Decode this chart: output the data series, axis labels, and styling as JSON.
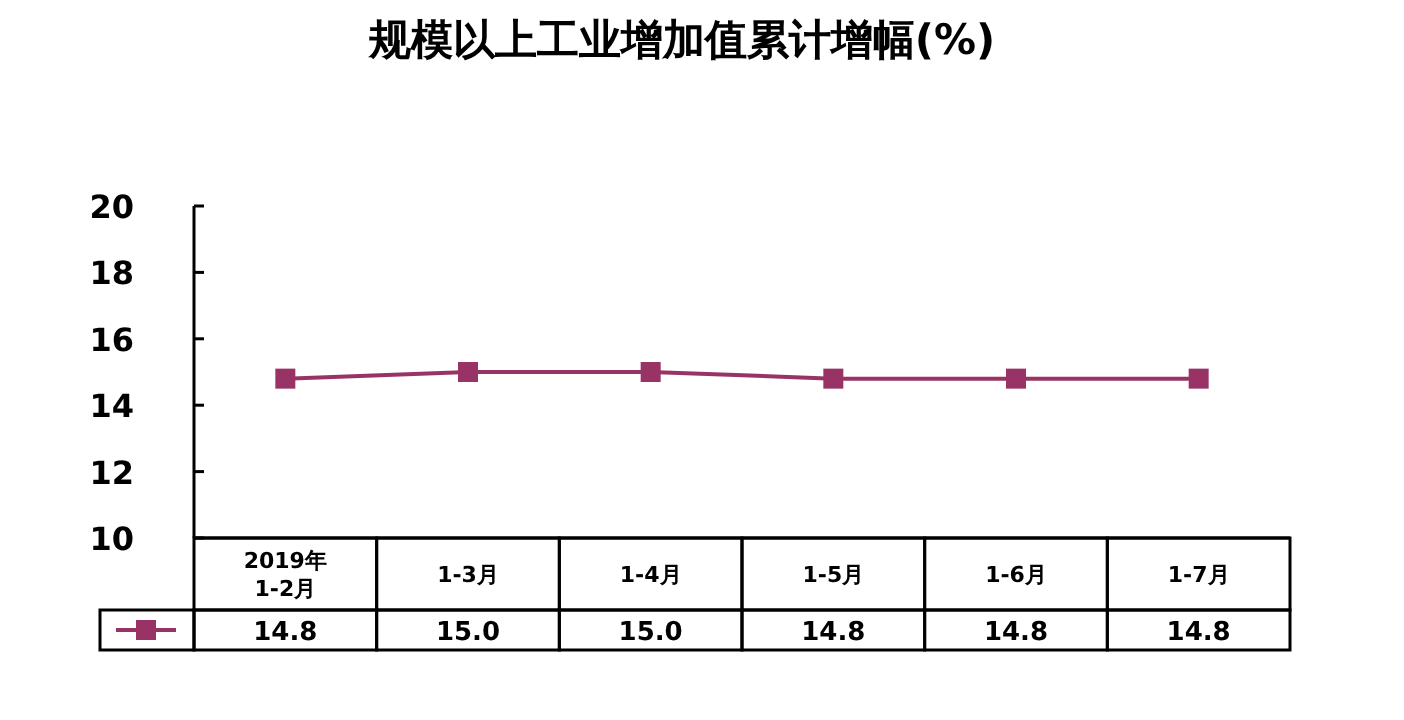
{
  "chart_data": {
    "type": "line",
    "title": "规模以上工业增加值累计增幅(%)",
    "categories": [
      "2019年 1-2月",
      "1-3月",
      "1-4月",
      "1-5月",
      "1-6月",
      "1-7月"
    ],
    "series": [
      {
        "color": "#993366",
        "values": [
          14.8,
          15.0,
          15.0,
          14.8,
          14.8,
          14.8
        ],
        "value_labels": [
          "14.8",
          "15.0",
          "15.0",
          "14.8",
          "14.8",
          "14.8"
        ]
      }
    ],
    "ylim": [
      10,
      20
    ],
    "yticks": [
      10,
      12,
      14,
      16,
      18,
      20
    ],
    "marker": "square",
    "line_style": "solid"
  }
}
